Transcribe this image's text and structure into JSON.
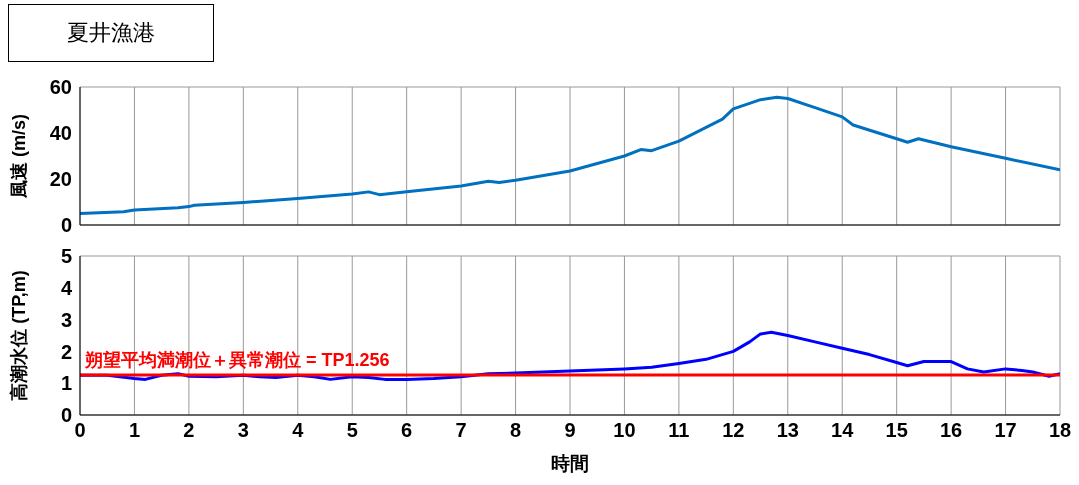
{
  "chart_data": [
    {
      "type": "line",
      "title": "夏井漁港",
      "ylabel": "風速 (m/s)",
      "x": [
        0,
        0.8,
        1,
        1.8,
        2,
        2.1,
        3,
        4,
        5,
        5.3,
        5.5,
        6,
        7,
        7.5,
        7.7,
        8,
        9,
        10,
        10.3,
        10.5,
        11,
        11.8,
        12,
        12.5,
        12.8,
        13,
        13.5,
        14,
        14.2,
        15,
        15.2,
        15.4,
        16,
        17,
        18
      ],
      "series": [
        {
          "color": "#0070c0",
          "values": [
            5,
            5.8,
            6.5,
            7.5,
            8,
            8.6,
            9.8,
            11.5,
            13.5,
            14.4,
            13.2,
            14.5,
            17,
            19,
            18.5,
            19.5,
            23.5,
            30,
            32.8,
            32.3,
            36.5,
            46,
            50.5,
            54.5,
            55.5,
            55,
            51,
            47,
            43.5,
            37.5,
            36,
            37.5,
            34,
            29,
            24
          ]
        }
      ],
      "xlim": [
        0,
        18
      ],
      "xticks": [
        0,
        1,
        2,
        3,
        4,
        5,
        6,
        7,
        8,
        9,
        10,
        11,
        12,
        13,
        14,
        15,
        16,
        17,
        18
      ],
      "ylim": [
        0,
        60
      ],
      "yticks": [
        0,
        20,
        40,
        60
      ],
      "grid": true,
      "tick_labels": "y"
    },
    {
      "type": "line",
      "ylabel": "高潮水位 (TP,m)",
      "xlabel": "時間",
      "x": [
        0,
        0.5,
        1,
        1.2,
        1.5,
        1.8,
        2,
        2.5,
        3,
        3.3,
        3.6,
        4,
        4.3,
        4.6,
        5,
        5.3,
        5.6,
        6,
        6.5,
        7,
        7.5,
        8,
        9,
        10,
        10.5,
        11,
        11.5,
        12,
        12.3,
        12.5,
        12.7,
        13,
        13.5,
        14,
        14.5,
        15,
        15.2,
        15.5,
        16,
        16.3,
        16.6,
        17,
        17.3,
        17.5,
        17.8,
        18
      ],
      "series": [
        {
          "color": "#0000ff",
          "values": [
            1.25,
            1.25,
            1.15,
            1.12,
            1.25,
            1.3,
            1.22,
            1.2,
            1.25,
            1.2,
            1.18,
            1.25,
            1.2,
            1.12,
            1.2,
            1.18,
            1.12,
            1.12,
            1.15,
            1.2,
            1.3,
            1.32,
            1.38,
            1.45,
            1.5,
            1.62,
            1.75,
            2.0,
            2.3,
            2.55,
            2.6,
            2.5,
            2.3,
            2.1,
            1.9,
            1.65,
            1.55,
            1.68,
            1.68,
            1.45,
            1.35,
            1.45,
            1.4,
            1.35,
            1.22,
            1.3
          ]
        }
      ],
      "xlim": [
        0,
        18
      ],
      "xticks": [
        0,
        1,
        2,
        3,
        4,
        5,
        6,
        7,
        8,
        9,
        10,
        11,
        12,
        13,
        14,
        15,
        16,
        17,
        18
      ],
      "ylim": [
        0,
        5
      ],
      "yticks": [
        0,
        1,
        2,
        3,
        4,
        5
      ],
      "grid": true,
      "ref_lines": [
        {
          "axis": "y",
          "value": 1.256,
          "label": "朔望平均満潮位＋異常潮位 = TP1.256",
          "color": "#ff0000"
        }
      ]
    }
  ]
}
